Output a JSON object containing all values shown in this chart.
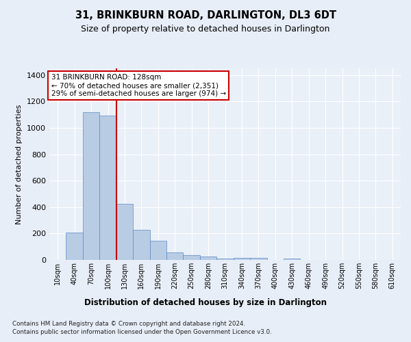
{
  "title": "31, BRINKBURN ROAD, DARLINGTON, DL3 6DT",
  "subtitle": "Size of property relative to detached houses in Darlington",
  "xlabel": "Distribution of detached houses by size in Darlington",
  "ylabel": "Number of detached properties",
  "bar_color": "#b8cce4",
  "bar_edge_color": "#5a8ac6",
  "marker_line_color": "#cc0000",
  "categories": [
    "10sqm",
    "40sqm",
    "70sqm",
    "100sqm",
    "130sqm",
    "160sqm",
    "190sqm",
    "220sqm",
    "250sqm",
    "280sqm",
    "310sqm",
    "340sqm",
    "370sqm",
    "400sqm",
    "430sqm",
    "460sqm",
    "490sqm",
    "520sqm",
    "550sqm",
    "580sqm",
    "610sqm"
  ],
  "values": [
    0,
    207,
    1120,
    1095,
    425,
    230,
    145,
    58,
    38,
    25,
    10,
    15,
    15,
    0,
    12,
    0,
    0,
    0,
    0,
    0,
    0
  ],
  "ylim": [
    0,
    1450
  ],
  "yticks": [
    0,
    200,
    400,
    600,
    800,
    1000,
    1200,
    1400
  ],
  "annotation_text": "31 BRINKBURN ROAD: 128sqm\n← 70% of detached houses are smaller (2,351)\n29% of semi-detached houses are larger (974) →",
  "annotation_box_color": "#ffffff",
  "annotation_box_edge": "#cc0000",
  "footer_line1": "Contains HM Land Registry data © Crown copyright and database right 2024.",
  "footer_line2": "Contains public sector information licensed under the Open Government Licence v3.0.",
  "bg_color": "#e8eef7",
  "plot_bg_color": "#eaf0f8"
}
